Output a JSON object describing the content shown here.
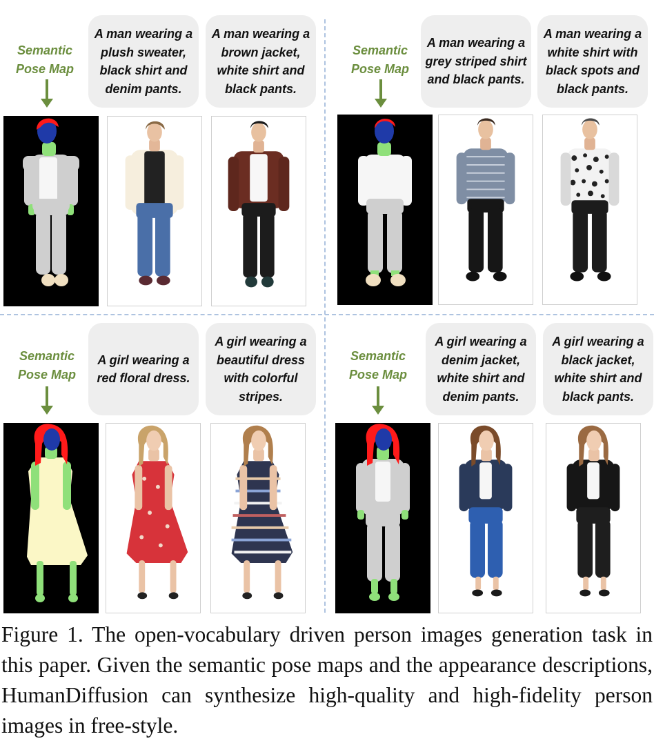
{
  "figure": {
    "label": "Semantic Pose Map",
    "colors": {
      "label_green": "#6b8e3e",
      "bubble_bg": "#eeeeee",
      "divider": "#aec3e0",
      "hair_red": "#ff1a1a",
      "face_blue": "#1f3aa8",
      "skin_green": "#8fe07a",
      "top_gray": "#cfcfcf",
      "shirt_white": "#f6f6f6",
      "dress_yellow": "#fbf7c6"
    },
    "panels": [
      {
        "label_lines": [
          "Semantic",
          "Pose Map"
        ],
        "captions": [
          "A man wearing a plush sweater, black shirt and denim pants.",
          "A man wearing a brown jacket, white shirt and black pants."
        ]
      },
      {
        "label_lines": [
          "Semantic",
          "Pose Map"
        ],
        "captions": [
          "A man wearing a grey striped shirt and black pants.",
          "A man wearing a white shirt with black spots and black pants."
        ]
      },
      {
        "label_lines": [
          "Semantic",
          "Pose Map"
        ],
        "captions": [
          "A girl wearing a red floral dress.",
          "A girl wearing a beautiful dress with colorful stripes."
        ]
      },
      {
        "label_lines": [
          "Semantic",
          "Pose Map"
        ],
        "captions": [
          "A girl wearing a denim jacket, white shirt and denim pants.",
          "A girl wearing a black jacket, white shirt and black pants."
        ]
      }
    ]
  },
  "caption": {
    "label": "Figure 1.",
    "text": "The open-vocabulary driven person images generation task in this paper. Given the semantic pose maps and the appearance descriptions, HumanDiffusion can synthesize high-quality and high-fidelity person images in free-style."
  }
}
